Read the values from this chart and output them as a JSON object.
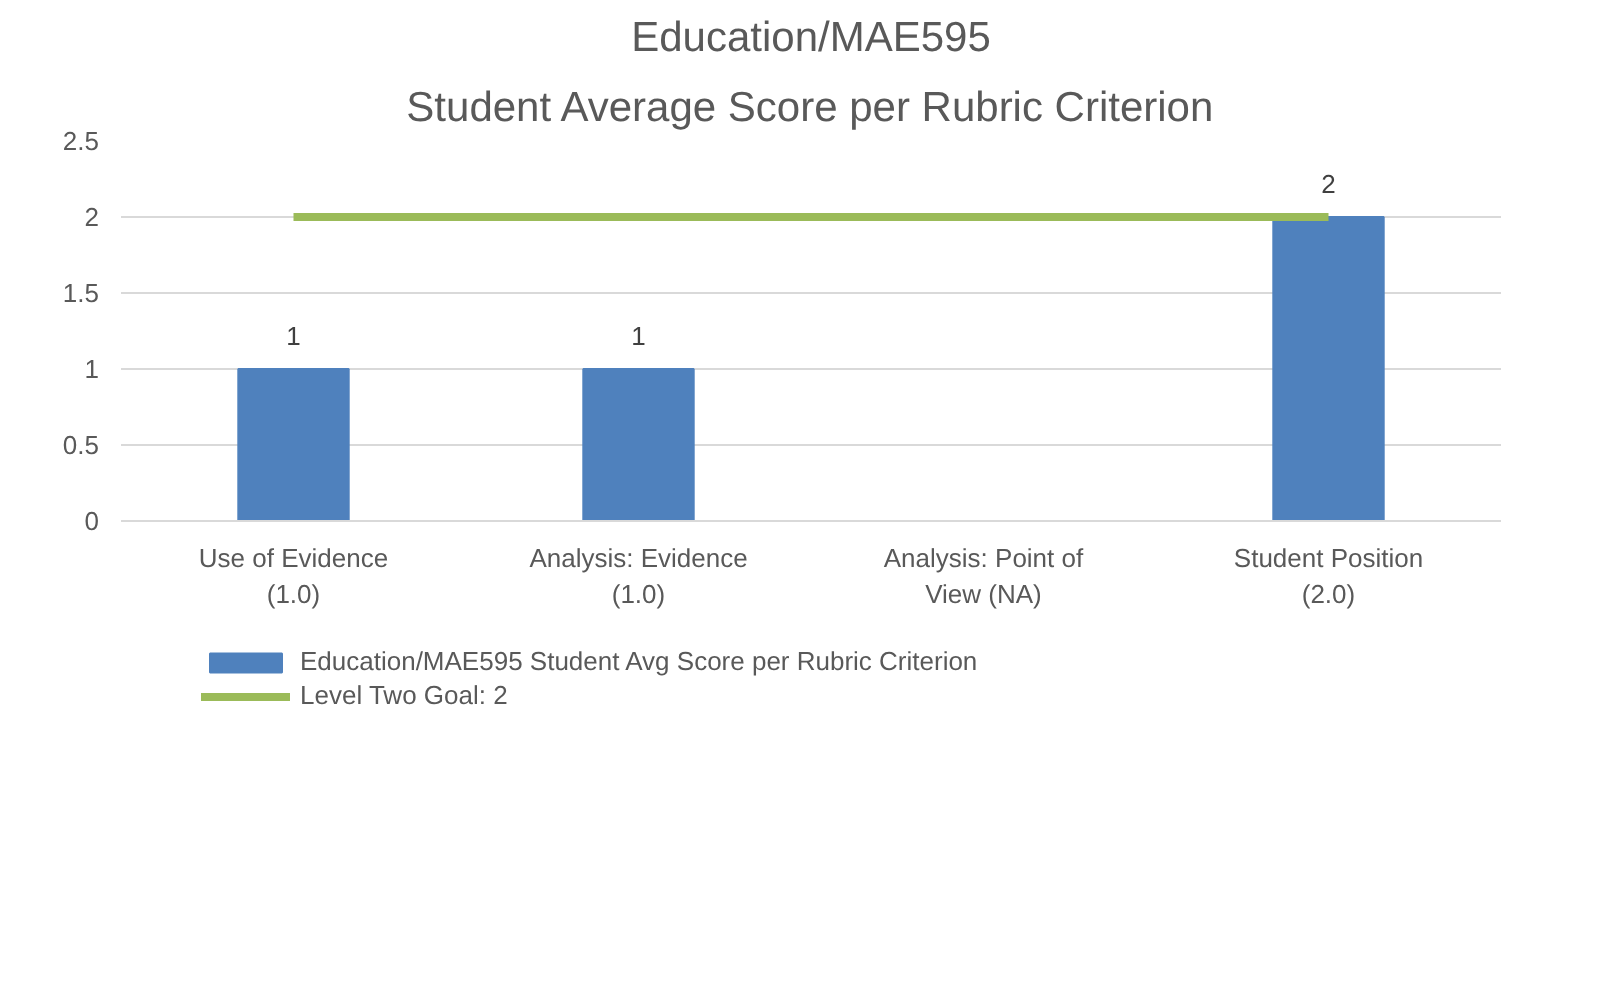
{
  "chart_data": {
    "type": "bar",
    "title": "Education/MAE595",
    "subtitle": "Student Average Score per Rubric Criterion",
    "categories": [
      "Use of Evidence\n(1.0)",
      "Analysis: Evidence\n(1.0)",
      "Analysis: Point of\nView (NA)",
      "Student Position\n(2.0)"
    ],
    "series": [
      {
        "name": "Education/MAE595 Student Avg Score per Rubric Criterion",
        "color": "#4f81bd",
        "values": [
          1,
          1,
          null,
          2
        ],
        "value_labels": [
          "1",
          "1",
          null,
          "2"
        ]
      },
      {
        "name": "Level Two Goal: 2",
        "type": "line",
        "color": "#9bbb59",
        "values": [
          2,
          2,
          2,
          2
        ]
      }
    ],
    "ylim": [
      0,
      2.5
    ],
    "yticks": [
      0,
      {
        "value": 0.5,
        "label": "0.5"
      },
      1,
      {
        "value": 1.5,
        "label": "1.5"
      },
      2,
      {
        "value": 2.5,
        "label": "2.5"
      }
    ],
    "grid": "y",
    "legend": "bottom"
  }
}
